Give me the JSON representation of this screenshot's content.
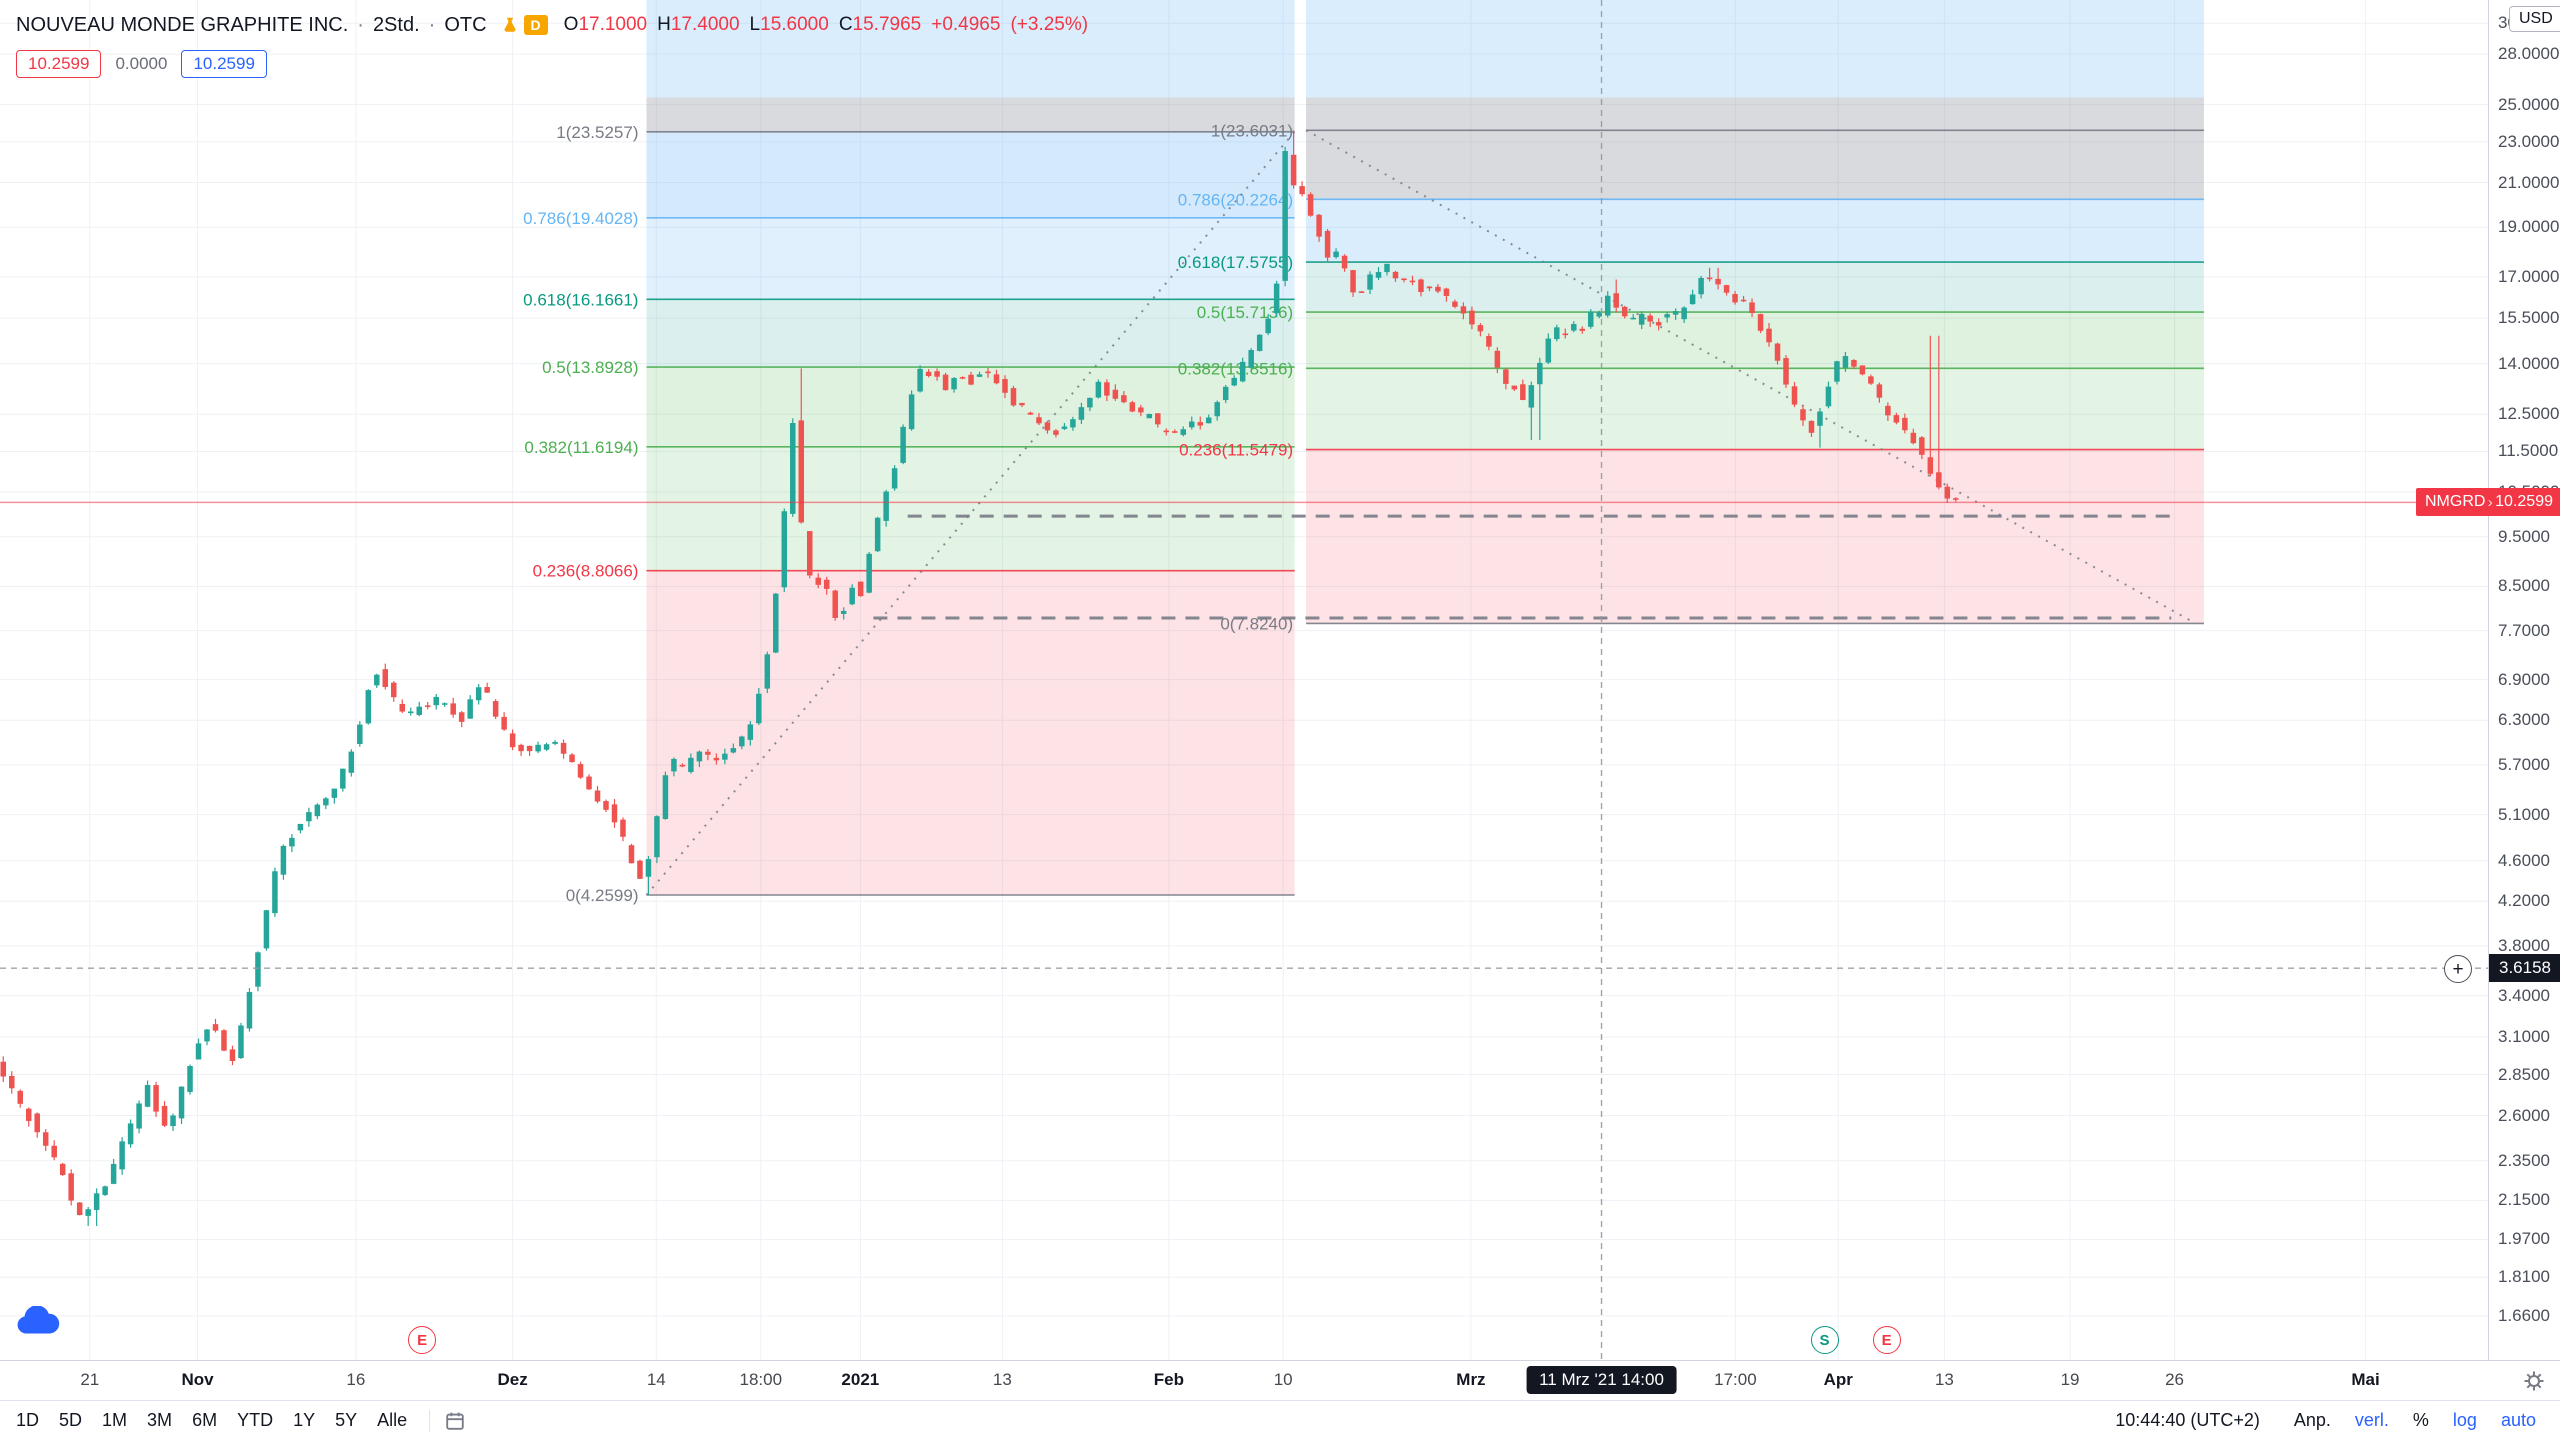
{
  "header": {
    "symbol_title": "NOUVEAU MONDE GRAPHITE INC.",
    "separator": "·",
    "interval": "2Std.",
    "exchange": "OTC",
    "delayed_badge": "D",
    "ohlc": {
      "open_label": "O",
      "open": "17.1000",
      "high_label": "H",
      "high": "17.4000",
      "low_label": "L",
      "low": "15.6000",
      "close_label": "C",
      "close": "15.7965",
      "change": "+0.4965",
      "change_pct": "(+3.25%)"
    },
    "value_badges": {
      "red": "10.2599",
      "plain": "0.0000",
      "blue": "10.2599"
    }
  },
  "price_axis": {
    "currency": "USD",
    "tick_prices": [
      30,
      28,
      25,
      23,
      21,
      19,
      17,
      15.5,
      14,
      12.5,
      11.5,
      10.5,
      9.5,
      8.5,
      7.7,
      6.9,
      6.3,
      5.7,
      5.1,
      4.6,
      4.2,
      3.8,
      3.4,
      3.1,
      2.85,
      2.6,
      2.35,
      2.15,
      1.97,
      1.81,
      1.66
    ],
    "last_price_badge": {
      "ticker": "NMGRD",
      "arrow": "›",
      "price": "10.2599"
    },
    "crosshair_price": "3.6158"
  },
  "time_axis": {
    "ticks": [
      {
        "label": "21",
        "x": 55
      },
      {
        "label": "Nov",
        "x": 121,
        "major": true
      },
      {
        "label": "16",
        "x": 218
      },
      {
        "label": "Dez",
        "x": 314,
        "major": true
      },
      {
        "label": "14",
        "x": 402
      },
      {
        "label": "18:00",
        "x": 466
      },
      {
        "label": "2021",
        "x": 527,
        "major": true
      },
      {
        "label": "13",
        "x": 614
      },
      {
        "label": "Feb",
        "x": 716,
        "major": true
      },
      {
        "label": "10",
        "x": 786
      },
      {
        "label": "Mrz",
        "x": 901,
        "major": true
      },
      {
        "label": "17:00",
        "x": 1063
      },
      {
        "label": "Apr",
        "x": 1126,
        "major": true
      },
      {
        "label": "13",
        "x": 1191
      },
      {
        "label": "19",
        "x": 1268
      },
      {
        "label": "26",
        "x": 1332
      },
      {
        "label": "Mai",
        "x": 1449,
        "major": true
      }
    ],
    "crosshair_label": "11 Mrz '21 14:00"
  },
  "toolbar": {
    "ranges": [
      "1D",
      "5D",
      "1M",
      "3M",
      "6M",
      "YTD",
      "1Y",
      "5Y",
      "Alle"
    ],
    "clock": "10:44:40 (UTC+2)",
    "right_items": [
      {
        "label": "Anp.",
        "active": false
      },
      {
        "label": "verl.",
        "active": true
      },
      {
        "label": "%",
        "active": false
      },
      {
        "label": "log",
        "active": true
      },
      {
        "label": "auto",
        "active": true
      }
    ]
  },
  "markers": [
    {
      "label": "E",
      "x": 258,
      "color": "#f23645"
    },
    {
      "label": "S",
      "x": 1117,
      "color": "#089981"
    },
    {
      "label": "E",
      "x": 1155,
      "color": "#f23645"
    }
  ],
  "chart_data": {
    "type": "candlestick",
    "symbol": "NMGRD",
    "company": "NOUVEAU MONDE GRAPHITE INC.",
    "interval": "2Std.",
    "exchange": "OTC",
    "currency": "USD",
    "scale": "log",
    "current_price": 10.2599,
    "crosshair": {
      "x": 981,
      "price": 3.6158,
      "time": "11 Mrz '21 14:00",
      "ohlc": {
        "open": 17.1,
        "high": 17.4,
        "low": 15.6,
        "close": 15.7965,
        "change": 0.4965,
        "change_pct": 3.25
      }
    },
    "x_domain": [
      0,
      1524
    ],
    "y_domain": [
      1.504,
      31.6
    ],
    "colors": {
      "up": "#26a69a",
      "down": "#ef5350",
      "grid": "#eef1f6",
      "last_price": "#f23645",
      "crosshair": "#9598a1",
      "drawing": "#787b86"
    },
    "bars": [
      2,
      1203
    ],
    "bar_step": 5.2,
    "bar_width": 5.5,
    "seed": 20210311,
    "fibs": [
      {
        "name": "fib-retracement-up",
        "x_range": [
          396,
          793
        ],
        "label_x": 396,
        "levels": [
          {
            "text": "1(23.5257)",
            "price": 23.5257,
            "color": "#787b86"
          },
          {
            "text": "0.786(19.4028)",
            "price": 19.4028,
            "color": "#64b5f6"
          },
          {
            "text": "0.618(16.1661)",
            "price": 16.1661,
            "color": "#089981"
          },
          {
            "text": "0.5(13.8928)",
            "price": 13.8928,
            "color": "#4caf50"
          },
          {
            "text": "0.382(11.6194)",
            "price": 11.6194,
            "color": "#4caf50"
          },
          {
            "text": "0.236(8.8066)",
            "price": 8.8066,
            "color": "#f23645"
          },
          {
            "text": "0(4.2599)",
            "price": 4.2599,
            "color": "#787b86"
          }
        ],
        "bands": [
          {
            "p1": 4.2599,
            "p2": 8.8066,
            "fill": "rgba(242,54,69,0.14)"
          },
          {
            "p1": 8.8066,
            "p2": 11.6194,
            "fill": "rgba(129,199,132,0.22)"
          },
          {
            "p1": 11.6194,
            "p2": 13.8928,
            "fill": "rgba(76,175,80,0.18)"
          },
          {
            "p1": 13.8928,
            "p2": 16.1661,
            "fill": "rgba(0,150,136,0.14)"
          },
          {
            "p1": 16.1661,
            "p2": 19.4028,
            "fill": "rgba(100,181,246,0.20)"
          },
          {
            "p1": 19.4028,
            "p2": 23.5257,
            "fill": "rgba(100,181,246,0.28)"
          },
          {
            "p1": 23.5257,
            "p2": 25.4,
            "fill": "rgba(120,123,134,0.28)"
          },
          {
            "p1": 25.4,
            "p2": 31.6,
            "fill": "rgba(100,181,246,0.24)"
          }
        ]
      },
      {
        "name": "fib-retracement-down",
        "x_range": [
          800,
          1350
        ],
        "label_x": 797,
        "levels": [
          {
            "text": "1(23.6031)",
            "price": 23.6031,
            "color": "#787b86"
          },
          {
            "text": "0.786(20.2264)",
            "price": 20.2264,
            "color": "#64b5f6"
          },
          {
            "text": "0.618(17.5755)",
            "price": 17.5755,
            "color": "#089981"
          },
          {
            "text": "0.5(15.7136)",
            "price": 15.7136,
            "color": "#4caf50"
          },
          {
            "text": "0.382(13.8516)",
            "price": 13.8516,
            "color": "#4caf50"
          },
          {
            "text": "0.236(11.5479)",
            "price": 11.5479,
            "color": "#f23645"
          },
          {
            "text": "0(7.8240)",
            "price": 7.824,
            "color": "#787b86"
          }
        ],
        "bands": [
          {
            "p1": 7.824,
            "p2": 11.5479,
            "fill": "rgba(242,54,69,0.14)"
          },
          {
            "p1": 11.5479,
            "p2": 13.8516,
            "fill": "rgba(129,199,132,0.22)"
          },
          {
            "p1": 13.8516,
            "p2": 15.7136,
            "fill": "rgba(76,175,80,0.18)"
          },
          {
            "p1": 15.7136,
            "p2": 17.5755,
            "fill": "rgba(0,150,136,0.14)"
          },
          {
            "p1": 17.5755,
            "p2": 20.2264,
            "fill": "rgba(100,181,246,0.24)"
          },
          {
            "p1": 20.2264,
            "p2": 23.6031,
            "fill": "rgba(120,123,134,0.28)"
          },
          {
            "p1": 23.6031,
            "p2": 25.4,
            "fill": "rgba(120,123,134,0.28)"
          },
          {
            "p1": 25.4,
            "p2": 31.6,
            "fill": "rgba(100,181,246,0.24)"
          }
        ]
      }
    ],
    "trendlines": [
      {
        "x1": 396,
        "p1": 4.2599,
        "x2": 793,
        "p2": 23.5257
      },
      {
        "x1": 800,
        "p1": 23.6031,
        "x2": 1345,
        "p2": 7.824
      }
    ],
    "drawn_hlines": [
      {
        "price": 9.95,
        "x1": 556,
        "x2": 1330
      },
      {
        "price": 7.92,
        "x1": 535,
        "x2": 1330
      }
    ],
    "spikes": [
      {
        "x": 57,
        "p": 2.03,
        "side": "low"
      },
      {
        "x": 398,
        "p": 4.26,
        "side": "low"
      },
      {
        "x": 490,
        "p": 13.85,
        "side": "high"
      },
      {
        "x": 792,
        "p": 23.6,
        "side": "high"
      },
      {
        "x": 940,
        "p": 11.8,
        "side": "low"
      },
      {
        "x": 990,
        "p": 16.9,
        "side": "high"
      },
      {
        "x": 1050,
        "p": 17.35,
        "side": "high"
      },
      {
        "x": 1116,
        "p": 11.6,
        "side": "low"
      },
      {
        "x": 1184,
        "p": 14.9,
        "side": "high"
      }
    ],
    "price_path": [
      [
        0,
        2.95
      ],
      [
        12,
        2.75
      ],
      [
        22,
        2.6
      ],
      [
        32,
        2.45
      ],
      [
        42,
        2.3
      ],
      [
        50,
        2.12
      ],
      [
        57,
        2.06
      ],
      [
        64,
        2.18
      ],
      [
        72,
        2.25
      ],
      [
        80,
        2.45
      ],
      [
        88,
        2.6
      ],
      [
        95,
        2.78
      ],
      [
        102,
        2.6
      ],
      [
        108,
        2.5
      ],
      [
        115,
        2.72
      ],
      [
        122,
        2.95
      ],
      [
        128,
        3.1
      ],
      [
        134,
        3.22
      ],
      [
        140,
        3.05
      ],
      [
        147,
        2.95
      ],
      [
        153,
        3.2
      ],
      [
        160,
        3.55
      ],
      [
        168,
        4.1
      ],
      [
        175,
        4.6
      ],
      [
        182,
        4.85
      ],
      [
        190,
        5.0
      ],
      [
        198,
        5.2
      ],
      [
        205,
        5.35
      ],
      [
        212,
        5.5
      ],
      [
        220,
        5.9
      ],
      [
        228,
        6.5
      ],
      [
        234,
        7.05
      ],
      [
        238,
        6.95
      ],
      [
        245,
        6.6
      ],
      [
        252,
        6.45
      ],
      [
        258,
        6.35
      ],
      [
        265,
        6.55
      ],
      [
        272,
        6.6
      ],
      [
        280,
        6.45
      ],
      [
        287,
        6.3
      ],
      [
        294,
        6.6
      ],
      [
        300,
        6.85
      ],
      [
        306,
        6.5
      ],
      [
        313,
        6.15
      ],
      [
        320,
        5.95
      ],
      [
        328,
        5.85
      ],
      [
        336,
        5.95
      ],
      [
        344,
        6.0
      ],
      [
        352,
        5.8
      ],
      [
        360,
        5.55
      ],
      [
        368,
        5.35
      ],
      [
        376,
        5.2
      ],
      [
        384,
        4.95
      ],
      [
        390,
        4.65
      ],
      [
        396,
        4.38
      ],
      [
        400,
        4.45
      ],
      [
        406,
        4.9
      ],
      [
        412,
        5.55
      ],
      [
        418,
        5.75
      ],
      [
        424,
        5.65
      ],
      [
        430,
        5.8
      ],
      [
        436,
        5.85
      ],
      [
        442,
        5.7
      ],
      [
        448,
        5.85
      ],
      [
        454,
        5.95
      ],
      [
        460,
        6.1
      ],
      [
        466,
        6.35
      ],
      [
        472,
        6.9
      ],
      [
        478,
        7.8
      ],
      [
        483,
        9.2
      ],
      [
        487,
        10.6
      ],
      [
        490,
        12.6
      ],
      [
        493,
        11.2
      ],
      [
        496,
        9.6
      ],
      [
        500,
        8.9
      ],
      [
        504,
        8.4
      ],
      [
        508,
        8.8
      ],
      [
        512,
        8.35
      ],
      [
        516,
        8.0
      ],
      [
        520,
        7.95
      ],
      [
        524,
        8.3
      ],
      [
        528,
        8.6
      ],
      [
        532,
        8.35
      ],
      [
        536,
        8.9
      ],
      [
        540,
        9.5
      ],
      [
        544,
        10.1
      ],
      [
        548,
        10.5
      ],
      [
        552,
        10.9
      ],
      [
        556,
        11.7
      ],
      [
        560,
        12.5
      ],
      [
        564,
        13.2
      ],
      [
        568,
        13.7
      ],
      [
        572,
        13.9
      ],
      [
        576,
        13.4
      ],
      [
        580,
        13.75
      ],
      [
        584,
        13.15
      ],
      [
        588,
        13.5
      ],
      [
        592,
        13.85
      ],
      [
        596,
        13.6
      ],
      [
        601,
        13.45
      ],
      [
        606,
        13.8
      ],
      [
        612,
        13.6
      ],
      [
        618,
        13.3
      ],
      [
        624,
        12.95
      ],
      [
        630,
        12.7
      ],
      [
        636,
        12.45
      ],
      [
        642,
        12.2
      ],
      [
        648,
        12.05
      ],
      [
        654,
        11.95
      ],
      [
        660,
        12.3
      ],
      [
        666,
        12.6
      ],
      [
        672,
        12.95
      ],
      [
        678,
        13.35
      ],
      [
        684,
        13.1
      ],
      [
        690,
        13.05
      ],
      [
        696,
        12.7
      ],
      [
        702,
        12.45
      ],
      [
        708,
        12.5
      ],
      [
        714,
        12.15
      ],
      [
        720,
        12.05
      ],
      [
        726,
        11.95
      ],
      [
        732,
        12.3
      ],
      [
        738,
        12.2
      ],
      [
        744,
        12.45
      ],
      [
        750,
        12.8
      ],
      [
        756,
        13.25
      ],
      [
        762,
        13.6
      ],
      [
        768,
        14.15
      ],
      [
        774,
        14.7
      ],
      [
        780,
        15.3
      ],
      [
        785,
        16.1
      ],
      [
        788,
        17.2
      ],
      [
        790,
        19.0
      ],
      [
        792,
        22.6
      ],
      [
        794,
        21.4
      ],
      [
        797,
        20.7
      ],
      [
        800,
        20.9
      ],
      [
        803,
        20.3
      ],
      [
        806,
        19.7
      ],
      [
        810,
        19.3
      ],
      [
        814,
        18.6
      ],
      [
        818,
        17.9
      ],
      [
        822,
        18.2
      ],
      [
        826,
        17.6
      ],
      [
        830,
        17.1
      ],
      [
        834,
        16.5
      ],
      [
        838,
        16.25
      ],
      [
        842,
        16.8
      ],
      [
        846,
        17.3
      ],
      [
        850,
        17.0
      ],
      [
        854,
        17.45
      ],
      [
        858,
        17.0
      ],
      [
        862,
        16.7
      ],
      [
        866,
        16.85
      ],
      [
        870,
        16.95
      ],
      [
        874,
        16.6
      ],
      [
        878,
        16.35
      ],
      [
        882,
        16.6
      ],
      [
        886,
        16.45
      ],
      [
        890,
        16.2
      ],
      [
        894,
        16.05
      ],
      [
        898,
        15.85
      ],
      [
        902,
        15.6
      ],
      [
        906,
        15.45
      ],
      [
        910,
        15.15
      ],
      [
        914,
        14.85
      ],
      [
        918,
        14.45
      ],
      [
        922,
        14.0
      ],
      [
        926,
        13.5
      ],
      [
        930,
        13.0
      ],
      [
        934,
        13.35
      ],
      [
        938,
        12.8
      ],
      [
        942,
        13.2
      ],
      [
        946,
        13.7
      ],
      [
        950,
        14.3
      ],
      [
        954,
        14.75
      ],
      [
        958,
        15.05
      ],
      [
        962,
        14.95
      ],
      [
        966,
        15.15
      ],
      [
        970,
        15.3
      ],
      [
        974,
        15.15
      ],
      [
        978,
        15.55
      ],
      [
        982,
        15.75
      ],
      [
        986,
        15.6
      ],
      [
        990,
        16.4
      ],
      [
        994,
        15.9
      ],
      [
        998,
        15.55
      ],
      [
        1002,
        15.45
      ],
      [
        1006,
        15.35
      ],
      [
        1010,
        15.55
      ],
      [
        1014,
        15.35
      ],
      [
        1018,
        15.2
      ],
      [
        1022,
        15.45
      ],
      [
        1026,
        15.6
      ],
      [
        1030,
        15.55
      ],
      [
        1034,
        15.7
      ],
      [
        1038,
        15.95
      ],
      [
        1042,
        16.5
      ],
      [
        1046,
        16.9
      ],
      [
        1050,
        17.2
      ],
      [
        1054,
        16.9
      ],
      [
        1058,
        16.6
      ],
      [
        1062,
        16.45
      ],
      [
        1066,
        16.25
      ],
      [
        1070,
        16.1
      ],
      [
        1074,
        15.9
      ],
      [
        1078,
        15.6
      ],
      [
        1082,
        15.2
      ],
      [
        1086,
        14.9
      ],
      [
        1090,
        14.55
      ],
      [
        1094,
        14.05
      ],
      [
        1098,
        13.5
      ],
      [
        1102,
        12.95
      ],
      [
        1106,
        12.5
      ],
      [
        1110,
        12.25
      ],
      [
        1114,
        12.05
      ],
      [
        1118,
        12.5
      ],
      [
        1122,
        12.95
      ],
      [
        1126,
        13.5
      ],
      [
        1130,
        13.95
      ],
      [
        1134,
        14.2
      ],
      [
        1138,
        14.1
      ],
      [
        1142,
        13.95
      ],
      [
        1146,
        13.7
      ],
      [
        1150,
        13.4
      ],
      [
        1154,
        13.05
      ],
      [
        1158,
        12.7
      ],
      [
        1162,
        12.5
      ],
      [
        1166,
        12.35
      ],
      [
        1170,
        12.2
      ],
      [
        1174,
        12.0
      ],
      [
        1178,
        11.75
      ],
      [
        1182,
        11.5
      ],
      [
        1186,
        11.15
      ],
      [
        1190,
        10.75
      ],
      [
        1194,
        10.45
      ],
      [
        1198,
        10.3
      ],
      [
        1203,
        10.26
      ]
    ]
  }
}
